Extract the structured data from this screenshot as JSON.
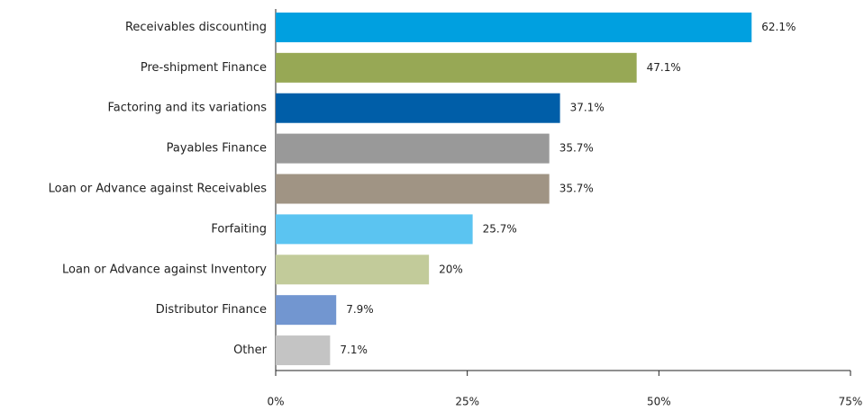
{
  "chart_data": {
    "type": "bar",
    "orientation": "horizontal",
    "categories": [
      "Receivables discounting",
      "Pre-shipment Finance",
      "Factoring and its variations",
      "Payables Finance",
      "Loan or Advance against Receivables",
      "Forfaiting",
      "Loan or Advance against Inventory",
      "Distributor Finance",
      "Other"
    ],
    "values": [
      62.1,
      47.1,
      37.1,
      35.7,
      35.7,
      25.7,
      20,
      7.9,
      7.1
    ],
    "value_labels": [
      "62.1%",
      "47.1%",
      "37.1%",
      "35.7%",
      "35.7%",
      "25.7%",
      "20%",
      "7.9%",
      "7.1%"
    ],
    "colors": [
      "#00a0e0",
      "#97a855",
      "#005ea8",
      "#999999",
      "#a09484",
      "#5bc4f1",
      "#c2cb9a",
      "#7296d0",
      "#c4c4c4"
    ],
    "xlim": [
      0,
      75
    ],
    "xticks": [
      {
        "value": 0,
        "label": "0%"
      },
      {
        "value": 25,
        "label": "25%"
      },
      {
        "value": 50,
        "label": "50%"
      },
      {
        "value": 75,
        "label": "75%"
      }
    ],
    "grid": false
  }
}
